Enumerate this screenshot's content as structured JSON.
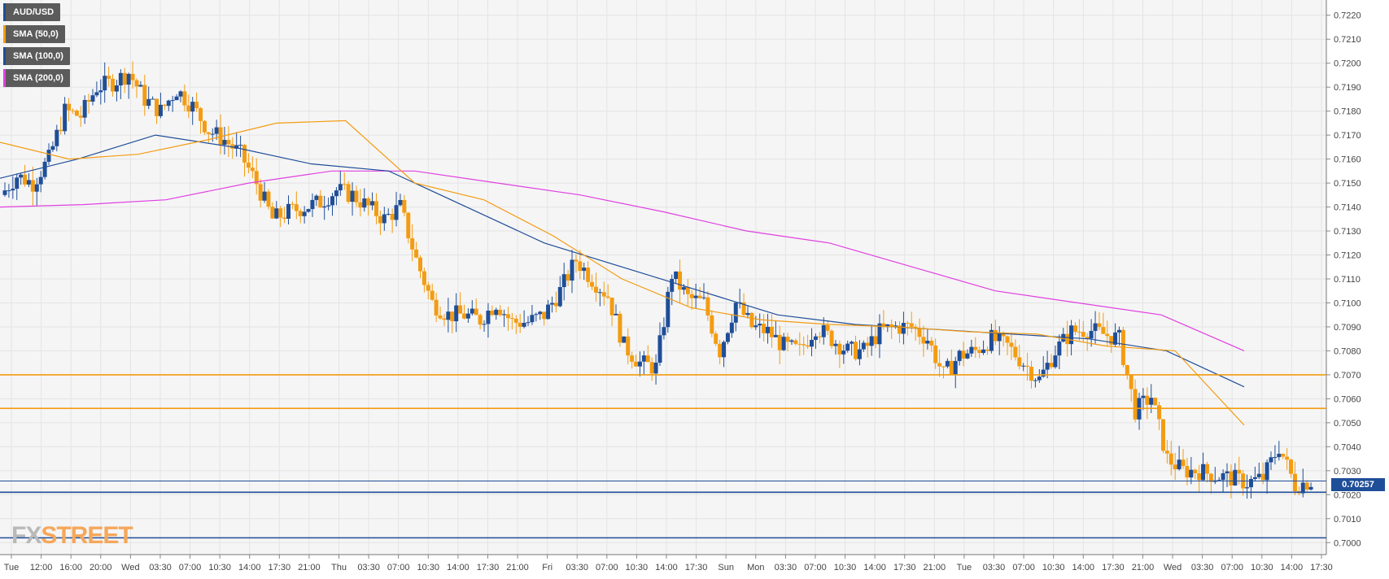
{
  "legend": [
    {
      "label": "AUD/USD",
      "color": "#1f4e99"
    },
    {
      "label": "SMA (50,0)",
      "color": "#f39c12"
    },
    {
      "label": "SMA (100,0)",
      "color": "#1f4e99"
    },
    {
      "label": "SMA (200,0)",
      "color": "#e040e0"
    }
  ],
  "watermark": {
    "part1": "FX",
    "part2": "STREET"
  },
  "price_badge": "0.70257",
  "colors": {
    "up_candle": "#1f4e99",
    "down_candle": "#f39c12",
    "grid": "#e4e4e4",
    "plot_bg": "#f5f5f5",
    "sma50": "#f39c12",
    "sma100": "#1f4e99",
    "sma200": "#e040e0",
    "resistance": "#f39c12",
    "support": "#1f4e99"
  },
  "chart_data": {
    "type": "candlestick",
    "title": "",
    "xlabel": "",
    "ylabel": "",
    "ylim": [
      0.6995,
      0.7225
    ],
    "grid": true,
    "legend_position": "top-left",
    "y_ticks": [
      "0.7000",
      "0.7010",
      "0.7020",
      "0.7030",
      "0.7040",
      "0.7050",
      "0.7060",
      "0.7070",
      "0.7080",
      "0.7090",
      "0.7100",
      "0.7110",
      "0.7120",
      "0.7130",
      "0.7140",
      "0.7150",
      "0.7160",
      "0.7170",
      "0.7180",
      "0.7190",
      "0.7200",
      "0.7210",
      "0.7220"
    ],
    "x_ticks": [
      "Tue",
      "12:00",
      "16:00",
      "20:00",
      "Wed",
      "03:30",
      "07:00",
      "10:30",
      "14:00",
      "17:30",
      "21:00",
      "Thu",
      "03:30",
      "07:00",
      "10:30",
      "14:00",
      "17:30",
      "21:00",
      "Fri",
      "03:30",
      "07:00",
      "10:30",
      "14:00",
      "17:30",
      "Sun",
      "Mon",
      "03:30",
      "07:00",
      "10:30",
      "14:00",
      "17:30",
      "21:00",
      "Tue",
      "03:30",
      "07:00",
      "10:30",
      "14:00",
      "17:30",
      "21:00",
      "Wed",
      "03:30",
      "07:00",
      "10:30",
      "14:00",
      "17:30"
    ],
    "horizontal_levels": [
      {
        "value": 0.707,
        "role": "resistance"
      },
      {
        "value": 0.7056,
        "role": "resistance"
      },
      {
        "value": 0.7021,
        "role": "support"
      },
      {
        "value": 0.7002,
        "role": "support"
      }
    ],
    "last_price": 0.70257,
    "price_path": [
      0.7145,
      0.7153,
      0.715,
      0.716,
      0.718,
      0.7178,
      0.719,
      0.7192,
      0.7196,
      0.7185,
      0.718,
      0.7189,
      0.7182,
      0.7172,
      0.7168,
      0.7162,
      0.715,
      0.7135,
      0.7138,
      0.714,
      0.7142,
      0.7147,
      0.7145,
      0.714,
      0.7135,
      0.714,
      0.7118,
      0.71,
      0.7095,
      0.7095,
      0.7093,
      0.71,
      0.7092,
      0.7092,
      0.7095,
      0.7105,
      0.7118,
      0.711,
      0.7103,
      0.7082,
      0.7075,
      0.7073,
      0.7112,
      0.7102,
      0.71,
      0.708,
      0.71,
      0.709,
      0.7088,
      0.7082,
      0.708,
      0.709,
      0.7085,
      0.708,
      0.708,
      0.7088,
      0.709,
      0.709,
      0.7085,
      0.707,
      0.7078,
      0.708,
      0.7085,
      0.7082,
      0.7075,
      0.7068,
      0.708,
      0.7088,
      0.7089,
      0.7087,
      0.7085,
      0.7055,
      0.7061,
      0.7035,
      0.703,
      0.703,
      0.7028,
      0.7027,
      0.7025,
      0.7027,
      0.704,
      0.7024,
      0.70257
    ],
    "sma50_path": [
      0.7167,
      0.716,
      0.7162,
      0.7168,
      0.7175,
      0.7176,
      0.715,
      0.7143,
      0.7128,
      0.711,
      0.7098,
      0.7093,
      0.7091,
      0.709,
      0.7088,
      0.7087,
      0.7082,
      0.708,
      0.7049
    ],
    "sma100_path": [
      0.7152,
      0.716,
      0.717,
      0.7165,
      0.7158,
      0.7155,
      0.714,
      0.7125,
      0.7115,
      0.7105,
      0.7095,
      0.7091,
      0.7089,
      0.7087,
      0.7085,
      0.708,
      0.7065
    ],
    "sma200_path": [
      0.714,
      0.7141,
      0.7143,
      0.715,
      0.7155,
      0.7155,
      0.715,
      0.7145,
      0.7138,
      0.713,
      0.7125,
      0.7115,
      0.7105,
      0.71,
      0.7095,
      0.708
    ]
  }
}
